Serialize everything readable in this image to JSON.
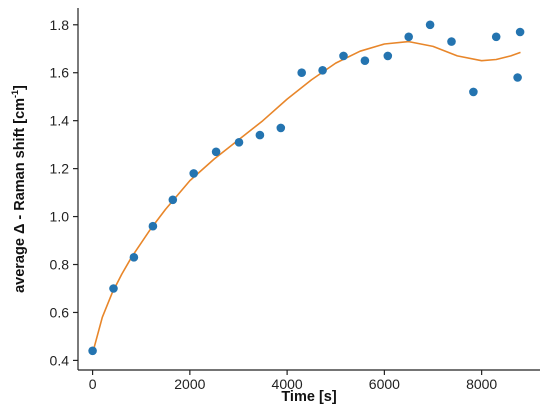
{
  "chart_data": {
    "type": "scatter",
    "title": "",
    "xlabel": "Time [s]",
    "ylabel_parts": {
      "main": "average Δ - Raman shift [cm",
      "sup": "-1",
      "end": "]"
    },
    "xlim": [
      -300,
      9200
    ],
    "ylim": [
      0.36,
      1.87
    ],
    "xticks": [
      0,
      2000,
      4000,
      6000,
      8000
    ],
    "xtick_labels": [
      "0",
      "2000",
      "4000",
      "6000",
      "8000"
    ],
    "yticks": [
      0.4,
      0.6,
      0.8,
      1.0,
      1.2,
      1.4,
      1.6,
      1.8
    ],
    "ytick_labels": [
      "0.4",
      "0.6",
      "0.8",
      "1.0",
      "1.2",
      "1.4",
      "1.6",
      "1.8"
    ],
    "grid": false,
    "legend": "none",
    "series": [
      {
        "kind": "points",
        "color": "#2474b0",
        "x": [
          0,
          430,
          850,
          1240,
          1650,
          2080,
          2540,
          3010,
          3440,
          3870,
          4300,
          4730,
          5160,
          5600,
          6070,
          6500,
          6940,
          7380,
          7830,
          8300,
          8740,
          8790
        ],
        "y": [
          0.44,
          0.7,
          0.83,
          0.96,
          1.07,
          1.18,
          1.27,
          1.31,
          1.34,
          1.37,
          1.6,
          1.61,
          1.67,
          1.65,
          1.67,
          1.75,
          1.8,
          1.73,
          1.52,
          1.75,
          1.58,
          1.77
        ]
      },
      {
        "kind": "fit-line",
        "color": "#e8862a",
        "x": [
          0,
          200,
          400,
          600,
          800,
          1000,
          1200,
          1500,
          2000,
          2500,
          3000,
          3500,
          4000,
          4500,
          5000,
          5500,
          6000,
          6500,
          7000,
          7500,
          8000,
          8300,
          8600,
          8800
        ],
        "y": [
          0.43,
          0.58,
          0.68,
          0.76,
          0.83,
          0.89,
          0.95,
          1.03,
          1.15,
          1.24,
          1.32,
          1.4,
          1.49,
          1.57,
          1.64,
          1.69,
          1.72,
          1.73,
          1.71,
          1.67,
          1.65,
          1.655,
          1.67,
          1.685
        ]
      }
    ]
  }
}
